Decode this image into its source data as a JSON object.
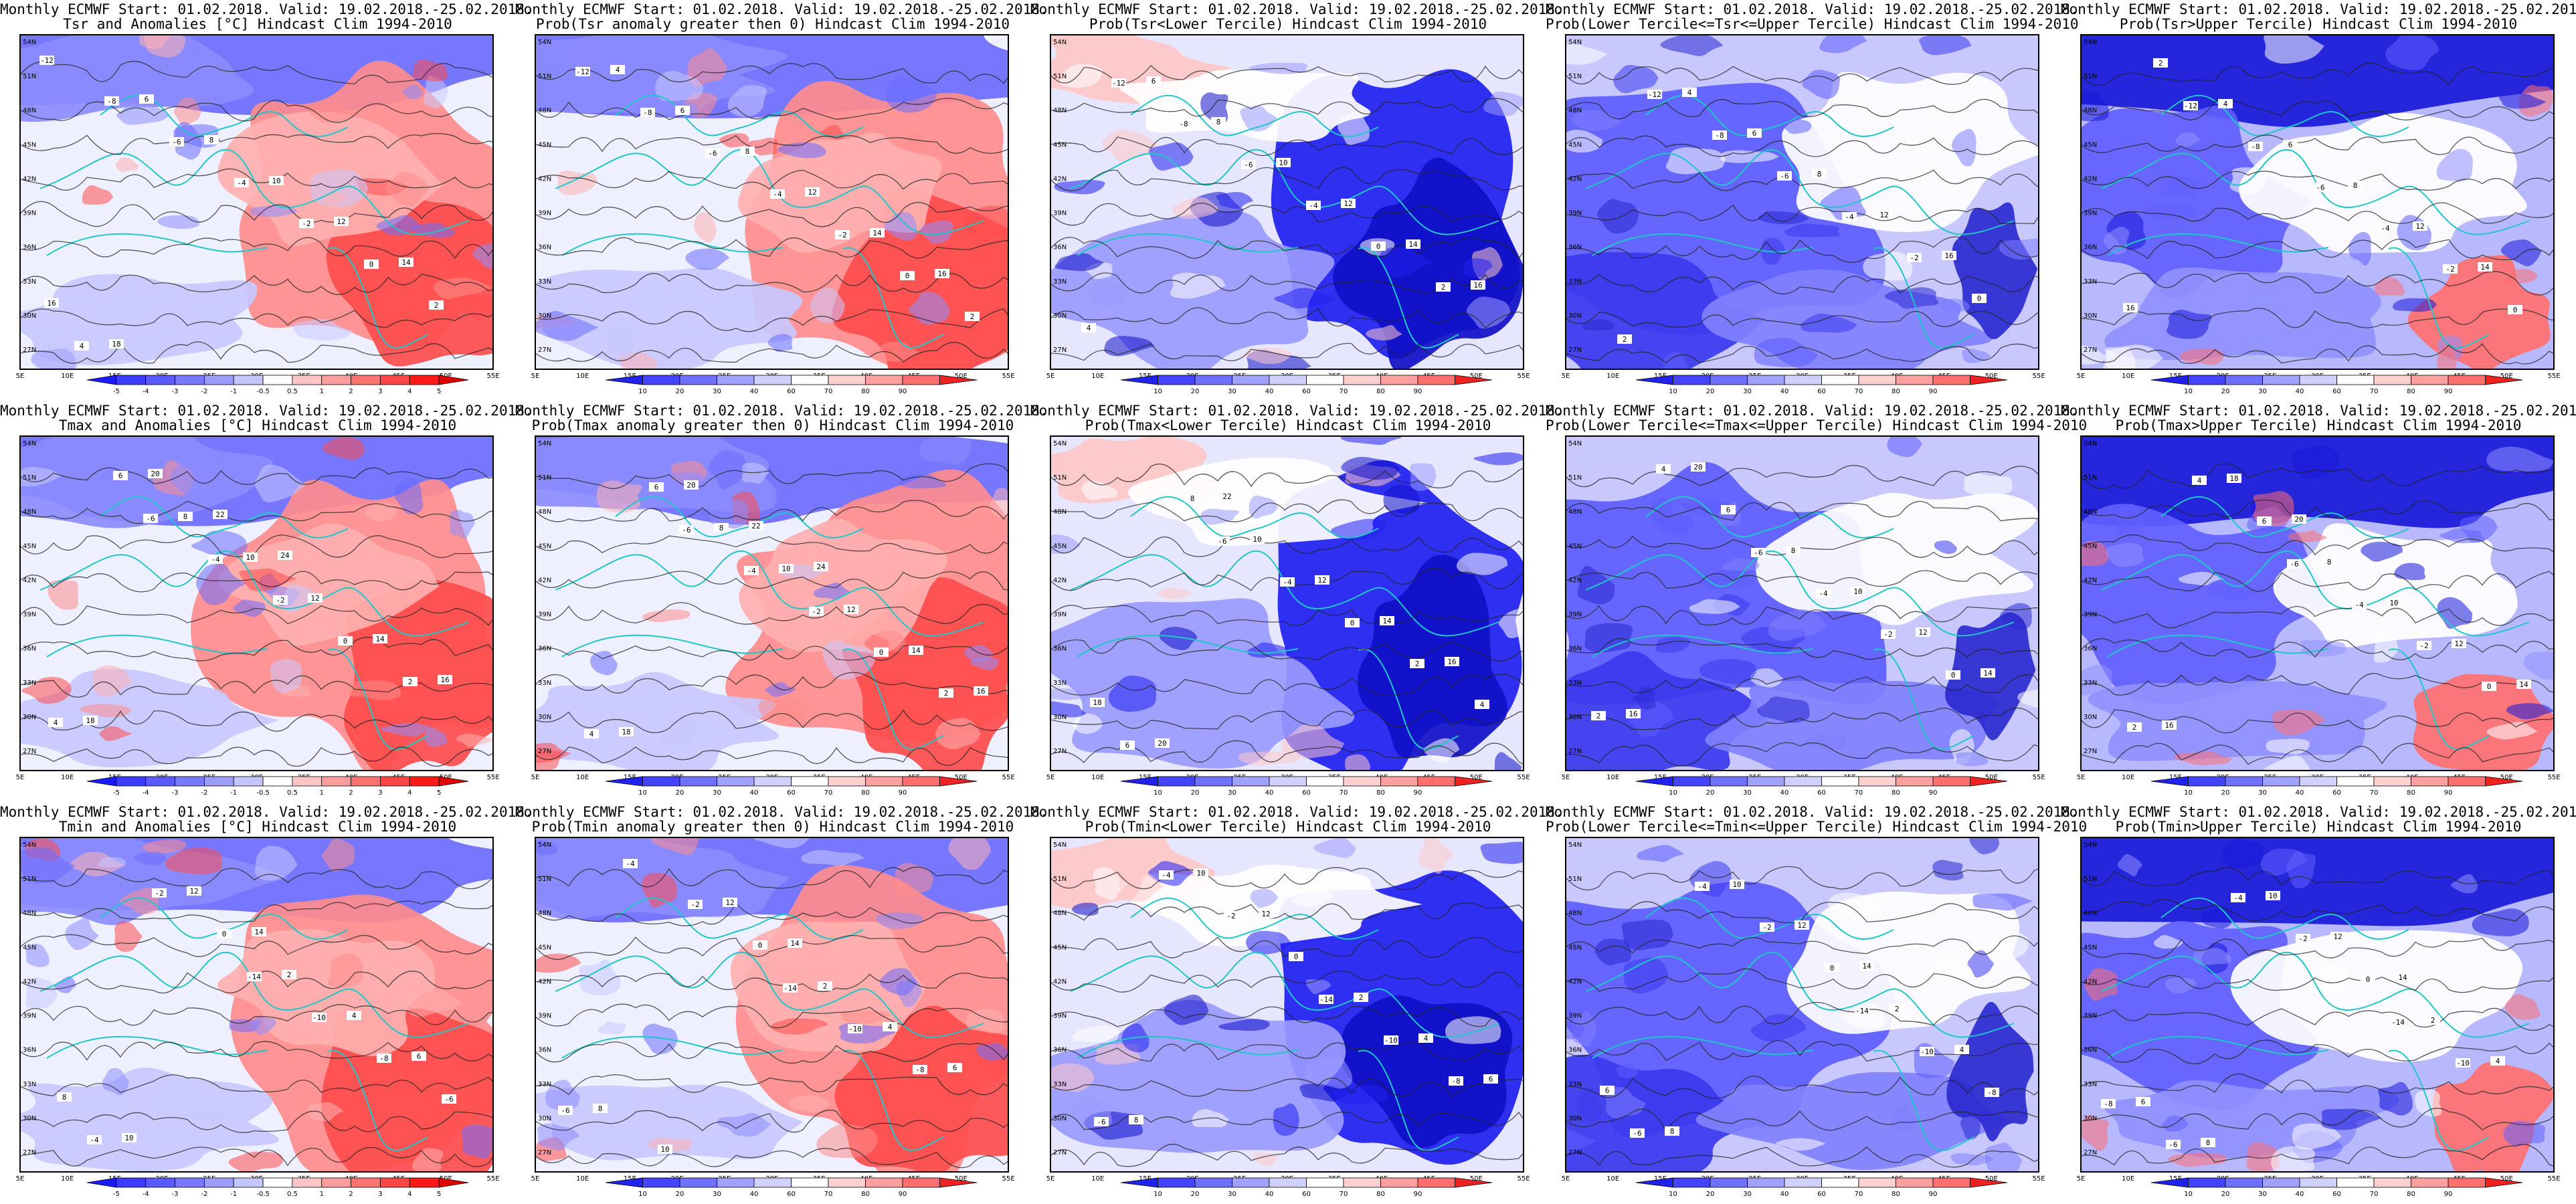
{
  "header": {
    "prefix": "Monthly ECMWF Start: 01.02.2018. Valid: 19.02.2018.-25.02.2018."
  },
  "axes": {
    "lon_labels": [
      "5E",
      "10E",
      "15E",
      "20E",
      "25E",
      "30E",
      "35E",
      "40E",
      "45E",
      "50E",
      "55E"
    ],
    "lat_labels": [
      "27N",
      "30N",
      "33N",
      "36N",
      "39N",
      "42N",
      "45N",
      "48N",
      "51N",
      "54N"
    ]
  },
  "colorbars": {
    "anomaly": {
      "labels": [
        "-5",
        "-4",
        "-3",
        "-2",
        "-1",
        "-0.5",
        "0.5",
        "1",
        "2",
        "3",
        "4",
        "5"
      ],
      "colors": [
        "#1a1aff",
        "#3c3cff",
        "#5a5aff",
        "#7878ff",
        "#9c9cff",
        "#c4c4ff",
        "#ffffff",
        "#ffc4c4",
        "#ff9c9c",
        "#ff7272",
        "#ff4646",
        "#ff1a1a",
        "#e00000"
      ]
    },
    "probability": {
      "labels": [
        "10",
        "20",
        "30",
        "40",
        "60",
        "70",
        "80",
        "90"
      ],
      "colors": [
        "#2222ee",
        "#4444ff",
        "#7070ff",
        "#a0a0ff",
        "#d0d0ff",
        "#ffffff",
        "#ffd0d0",
        "#ff9f9f",
        "#ff6f6f",
        "#ee2222"
      ]
    }
  },
  "colors": {
    "cold": "#2a2aff",
    "warm": "#ff3c3c",
    "coast": "#1ec8c8",
    "contour": "#222222"
  },
  "panels": [
    {
      "row": 0,
      "col": 0,
      "subtitle": "Tsr and Anomalies [°C] Hindcast Clim 1994-2010",
      "bar": "anomaly",
      "scheme": "anom",
      "labels": [
        "-12",
        "-8",
        "-6",
        "-4",
        "-2",
        "0",
        "2",
        "4",
        "6",
        "8",
        "10",
        "12",
        "14",
        "16",
        "18"
      ]
    },
    {
      "row": 0,
      "col": 1,
      "subtitle": "Prob(Tsr anomaly greater then 0) Hindcast Clim 1994-2010",
      "bar": "probability",
      "scheme": "anom",
      "labels": [
        "-12",
        "-8",
        "-6",
        "-4",
        "-2",
        "0",
        "2",
        "4",
        "6",
        "8",
        "12",
        "14",
        "16"
      ]
    },
    {
      "row": 0,
      "col": 2,
      "subtitle": "Prob(Tsr<Lower Tercile) Hindcast Clim 1994-2010",
      "bar": "probability",
      "scheme": "lower",
      "labels": [
        "-12",
        "-8",
        "-6",
        "-4",
        "0",
        "2",
        "4",
        "6",
        "8",
        "10",
        "12",
        "14",
        "16"
      ]
    },
    {
      "row": 0,
      "col": 3,
      "subtitle": "Prob(Lower Tercile<=Tsr<=Upper Tercile) Hindcast Clim 1994-2010",
      "bar": "probability",
      "scheme": "middle",
      "labels": [
        "-12",
        "-8",
        "-6",
        "-4",
        "-2",
        "0",
        "2",
        "4",
        "6",
        "8",
        "12",
        "16"
      ]
    },
    {
      "row": 0,
      "col": 4,
      "subtitle": "Prob(Tsr>Upper Tercile) Hindcast Clim 1994-2010",
      "bar": "probability",
      "scheme": "upper",
      "labels": [
        "-12",
        "-8",
        "-6",
        "-4",
        "-2",
        "0",
        "2",
        "4",
        "6",
        "8",
        "12",
        "14",
        "16"
      ]
    },
    {
      "row": 1,
      "col": 0,
      "subtitle": "Tmax and Anomalies [°C] Hindcast Clim 1994-2010",
      "bar": "anomaly",
      "scheme": "anom",
      "labels": [
        "-6",
        "-4",
        "-2",
        "0",
        "2",
        "4",
        "6",
        "8",
        "10",
        "12",
        "14",
        "16",
        "18",
        "20",
        "22",
        "24"
      ]
    },
    {
      "row": 1,
      "col": 1,
      "subtitle": "Prob(Tmax anomaly greater then 0) Hindcast Clim 1994-2010",
      "bar": "probability",
      "scheme": "anom",
      "labels": [
        "-6",
        "-4",
        "-2",
        "0",
        "2",
        "4",
        "6",
        "8",
        "10",
        "12",
        "14",
        "16",
        "18",
        "20",
        "22",
        "24"
      ]
    },
    {
      "row": 1,
      "col": 2,
      "subtitle": "Prob(Tmax<Lower Tercile) Hindcast Clim 1994-2010",
      "bar": "probability",
      "scheme": "lower",
      "labels": [
        "-6",
        "-4",
        "0",
        "2",
        "4",
        "6",
        "8",
        "10",
        "12",
        "14",
        "16",
        "18",
        "20",
        "22"
      ]
    },
    {
      "row": 1,
      "col": 3,
      "subtitle": "Prob(Lower Tercile<=Tmax<=Upper Tercile) Hindcast Clim 1994-2010",
      "bar": "probability",
      "scheme": "middle",
      "labels": [
        "-6",
        "-4",
        "-2",
        "0",
        "2",
        "4",
        "6",
        "8",
        "10",
        "12",
        "14",
        "16",
        "20"
      ]
    },
    {
      "row": 1,
      "col": 4,
      "subtitle": "Prob(Tmax>Upper Tercile) Hindcast Clim 1994-2010",
      "bar": "probability",
      "scheme": "upper",
      "labels": [
        "-6",
        "-4",
        "-2",
        "0",
        "2",
        "4",
        "6",
        "8",
        "10",
        "12",
        "14",
        "16",
        "18",
        "20"
      ]
    },
    {
      "row": 2,
      "col": 0,
      "subtitle": "Tmin and Anomalies [°C] Hindcast Clim 1994-2010",
      "bar": "anomaly",
      "scheme": "anom",
      "labels": [
        "-14",
        "-10",
        "-8",
        "-6",
        "-4",
        "-2",
        "0",
        "2",
        "4",
        "6",
        "8",
        "10",
        "12",
        "14"
      ]
    },
    {
      "row": 2,
      "col": 1,
      "subtitle": "Prob(Tmin anomaly greater then 0) Hindcast Clim 1994-2010",
      "bar": "probability",
      "scheme": "anom",
      "labels": [
        "-14",
        "-10",
        "-8",
        "-6",
        "-4",
        "-2",
        "0",
        "2",
        "4",
        "6",
        "8",
        "10",
        "12",
        "14"
      ]
    },
    {
      "row": 2,
      "col": 2,
      "subtitle": "Prob(Tmin<Lower Tercile) Hindcast Clim 1994-2010",
      "bar": "probability",
      "scheme": "lower",
      "labels": [
        "-14",
        "-10",
        "-8",
        "-6",
        "-4",
        "-2",
        "0",
        "2",
        "4",
        "6",
        "8",
        "10",
        "12"
      ]
    },
    {
      "row": 2,
      "col": 3,
      "subtitle": "Prob(Lower Tercile<=Tmin<=Upper Tercile) Hindcast Clim 1994-2010",
      "bar": "probability",
      "scheme": "middle",
      "labels": [
        "-14",
        "-10",
        "-8",
        "-6",
        "-4",
        "-2",
        "0",
        "2",
        "4",
        "6",
        "8",
        "10",
        "12",
        "14"
      ]
    },
    {
      "row": 2,
      "col": 4,
      "subtitle": "Prob(Tmin>Upper Tercile) Hindcast Clim 1994-2010",
      "bar": "probability",
      "scheme": "upper",
      "labels": [
        "-14",
        "-10",
        "-8",
        "-6",
        "-4",
        "-2",
        "0",
        "2",
        "4",
        "6",
        "8",
        "10",
        "12",
        "14"
      ]
    }
  ]
}
